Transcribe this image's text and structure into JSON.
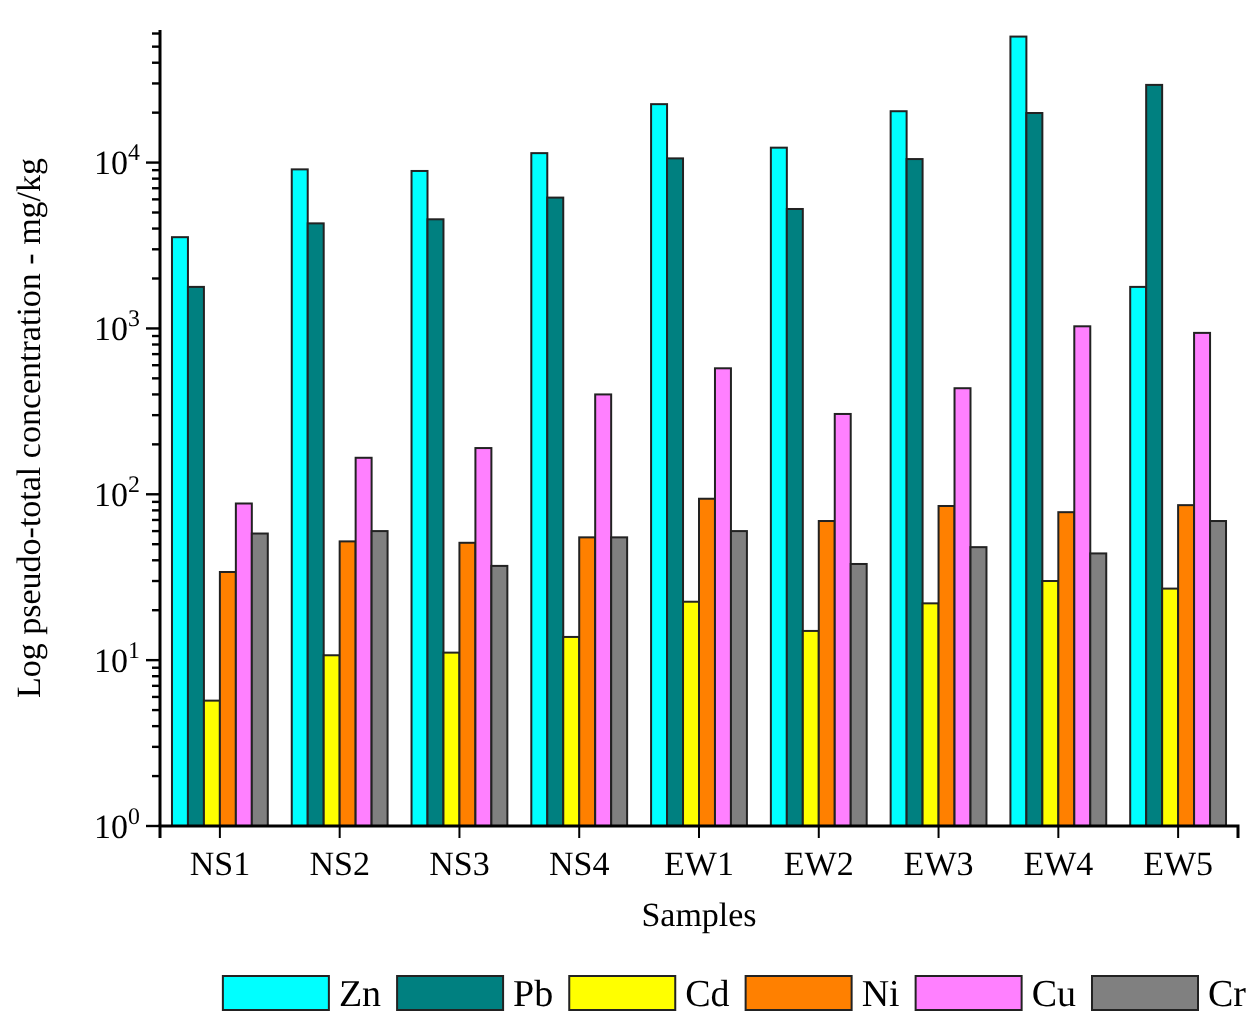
{
  "chart_data": {
    "type": "bar",
    "xlabel": "Samples",
    "ylabel": "Log pseudo-total concentration - mg/kg",
    "log": true,
    "legend": "bottom",
    "categories": [
      "NS1",
      "NS2",
      "NS3",
      "NS4",
      "EW1",
      "EW2",
      "EW3",
      "EW4",
      "EW5"
    ],
    "ylim": [
      1,
      63000
    ],
    "yticks": [
      {
        "value": 1,
        "label": "10$^{0}$"
      },
      {
        "value": 2,
        "label": null
      },
      {
        "value": 3,
        "label": null
      },
      {
        "value": 4,
        "label": null
      },
      {
        "value": 5,
        "label": null
      },
      {
        "value": 6,
        "label": null
      },
      {
        "value": 7,
        "label": null
      },
      {
        "value": 8,
        "label": null
      },
      {
        "value": 9,
        "label": null
      },
      {
        "value": 10,
        "label": "10$^{1}$"
      },
      {
        "value": 20,
        "label": null
      },
      {
        "value": 30,
        "label": null
      },
      {
        "value": 40,
        "label": null
      },
      {
        "value": 50,
        "label": null
      },
      {
        "value": 60,
        "label": null
      },
      {
        "value": 70,
        "label": null
      },
      {
        "value": 80,
        "label": null
      },
      {
        "value": 90,
        "label": null
      },
      {
        "value": 100,
        "label": "10$^{2}$"
      },
      {
        "value": 200,
        "label": null
      },
      {
        "value": 300,
        "label": null
      },
      {
        "value": 400,
        "label": null
      },
      {
        "value": 500,
        "label": null
      },
      {
        "value": 600,
        "label": null
      },
      {
        "value": 700,
        "label": null
      },
      {
        "value": 800,
        "label": null
      },
      {
        "value": 900,
        "label": null
      },
      {
        "value": 1000,
        "label": "10$^{3}$"
      },
      {
        "value": 2000,
        "label": null
      },
      {
        "value": 3000,
        "label": null
      },
      {
        "value": 4000,
        "label": null
      },
      {
        "value": 5000,
        "label": null
      },
      {
        "value": 6000,
        "label": null
      },
      {
        "value": 7000,
        "label": null
      },
      {
        "value": 8000,
        "label": null
      },
      {
        "value": 9000,
        "label": null
      },
      {
        "value": 10000,
        "label": "10$^{4}$"
      },
      {
        "value": 20000,
        "label": null
      },
      {
        "value": 30000,
        "label": null
      },
      {
        "value": 40000,
        "label": null
      },
      {
        "value": 50000,
        "label": null
      },
      {
        "value": 60000,
        "label": null
      }
    ],
    "series": [
      {
        "name": "Zn",
        "color": "#00ffff",
        "values": [
          3550,
          9100,
          8900,
          11400,
          22500,
          12300,
          20400,
          57500,
          1780
        ]
      },
      {
        "name": "Pb",
        "color": "#008080",
        "values": [
          1780,
          4300,
          4550,
          6150,
          10600,
          5250,
          10500,
          19900,
          29400
        ]
      },
      {
        "name": "Cd",
        "color": "#ffff00",
        "values": [
          5.7,
          10.7,
          11.1,
          13.8,
          22.5,
          15,
          22,
          30,
          27
        ]
      },
      {
        "name": "Ni",
        "color": "#ff8000",
        "values": [
          34,
          52,
          51,
          55,
          94,
          69,
          85,
          78,
          86
        ]
      },
      {
        "name": "Cu",
        "color": "#ff80ff",
        "values": [
          88,
          166,
          190,
          400,
          575,
          305,
          436,
          1030,
          940
        ]
      },
      {
        "name": "Cr",
        "color": "#808080",
        "values": [
          58,
          60,
          37,
          55,
          60,
          38,
          48,
          44,
          69
        ]
      }
    ]
  }
}
